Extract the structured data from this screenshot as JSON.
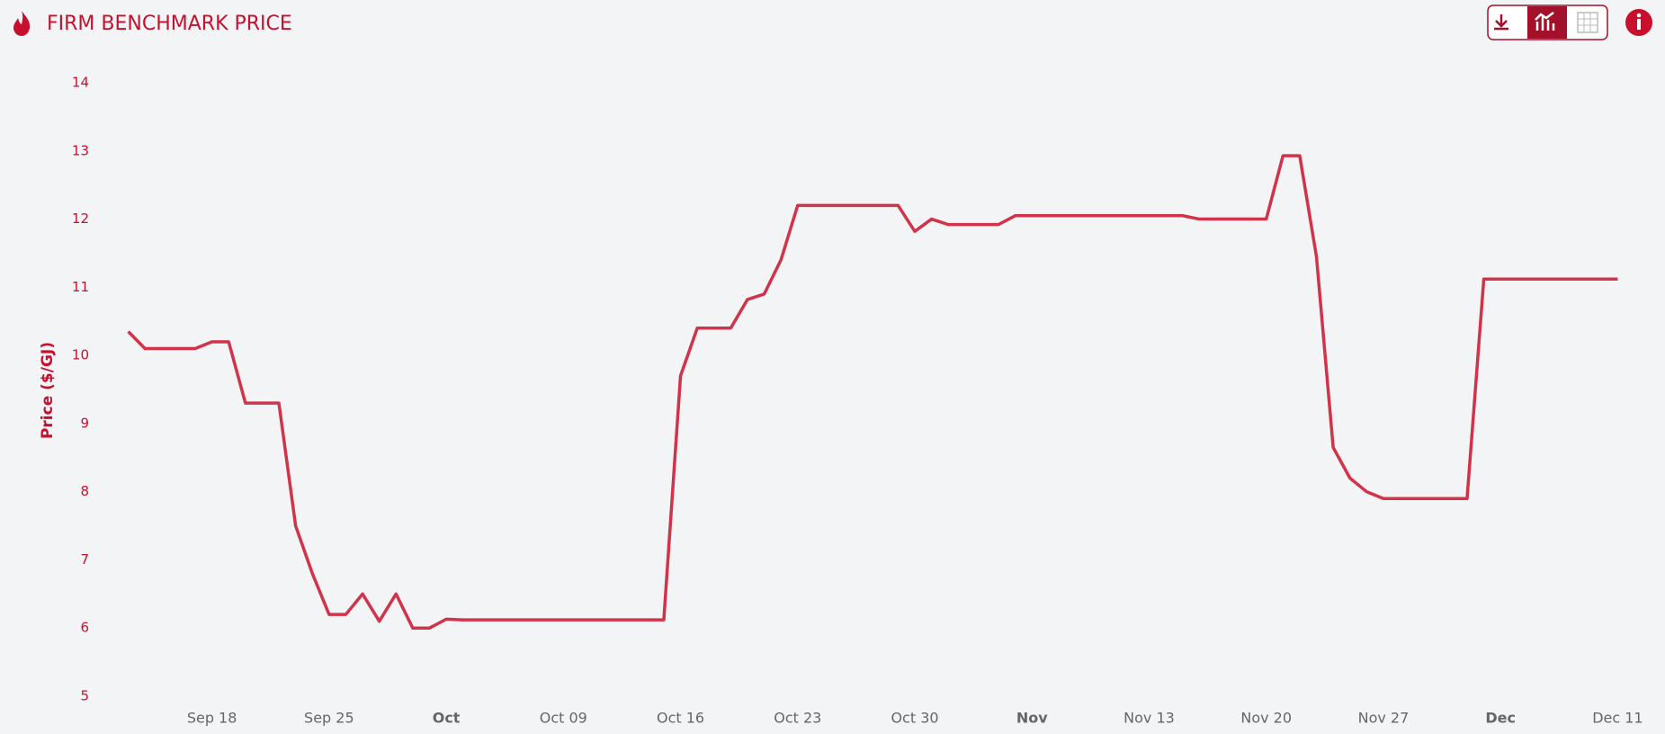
{
  "chart_data": {
    "type": "line",
    "title": "FIRM BENCHMARK PRICE",
    "ylabel": "Price ($/GJ)",
    "color": "#d0334a",
    "grid": false,
    "ylim": [
      5,
      14
    ],
    "yticks": [
      5,
      6,
      7,
      8,
      9,
      10,
      11,
      12,
      13,
      14
    ],
    "xlim": [
      "Sep 12",
      "Dec 12"
    ],
    "xticks": [
      "Sep 18",
      "Sep 25",
      {
        "value": "Oct 02",
        "label": "Oct"
      },
      "Oct 09",
      "Oct 16",
      "Oct 23",
      "Oct 30",
      {
        "value": "Nov 06",
        "label": "Nov"
      },
      "Nov 13",
      "Nov 20",
      "Nov 27",
      {
        "value": "Dec 04",
        "label": "Dec"
      },
      "Dec 11"
    ],
    "x": [
      "Sep 13",
      "Sep 14",
      "Sep 15",
      "Sep 16",
      "Sep 17",
      "Sep 18",
      "Sep 19",
      "Sep 20",
      "Sep 21",
      "Sep 22",
      "Sep 23",
      "Sep 24",
      "Sep 25",
      "Sep 26",
      "Sep 27",
      "Sep 28",
      "Sep 29",
      "Sep 30",
      "Oct 01",
      "Oct 02",
      "Oct 03",
      "Oct 04",
      "Oct 05",
      "Oct 06",
      "Oct 07",
      "Oct 08",
      "Oct 09",
      "Oct 10",
      "Oct 11",
      "Oct 12",
      "Oct 13",
      "Oct 14",
      "Oct 15",
      "Oct 16",
      "Oct 17",
      "Oct 18",
      "Oct 19",
      "Oct 20",
      "Oct 21",
      "Oct 22",
      "Oct 23",
      "Oct 24",
      "Oct 25",
      "Oct 26",
      "Oct 27",
      "Oct 28",
      "Oct 29",
      "Oct 30",
      "Oct 31",
      "Nov 01",
      "Nov 02",
      "Nov 03",
      "Nov 04",
      "Nov 05",
      "Nov 06",
      "Nov 07",
      "Nov 08",
      "Nov 09",
      "Nov 10",
      "Nov 11",
      "Nov 12",
      "Nov 13",
      "Nov 14",
      "Nov 15",
      "Nov 16",
      "Nov 17",
      "Nov 18",
      "Nov 19",
      "Nov 20",
      "Nov 21",
      "Nov 22",
      "Nov 23",
      "Nov 24",
      "Nov 25",
      "Nov 26",
      "Nov 27",
      "Nov 28",
      "Nov 29",
      "Nov 30",
      "Dec 01",
      "Dec 02",
      "Dec 03",
      "Dec 04",
      "Dec 05",
      "Dec 06",
      "Dec 07",
      "Dec 08",
      "Dec 09",
      "Dec 10",
      "Dec 11"
    ],
    "values": [
      10.35,
      10.1,
      10.1,
      10.1,
      10.1,
      10.2,
      10.2,
      9.3,
      9.3,
      9.3,
      7.5,
      6.8,
      6.2,
      6.2,
      6.5,
      6.1,
      6.5,
      6.0,
      6.0,
      6.13,
      6.12,
      6.12,
      6.12,
      6.12,
      6.12,
      6.12,
      6.12,
      6.12,
      6.12,
      6.12,
      6.12,
      6.12,
      6.12,
      9.7,
      10.4,
      10.4,
      10.4,
      10.82,
      10.9,
      11.4,
      12.2,
      12.2,
      12.2,
      12.2,
      12.2,
      12.2,
      12.2,
      11.82,
      12.0,
      11.92,
      11.92,
      11.92,
      11.92,
      12.05,
      12.05,
      12.05,
      12.05,
      12.05,
      12.05,
      12.05,
      12.05,
      12.05,
      12.05,
      12.05,
      12.0,
      12.0,
      12.0,
      12.0,
      12.0,
      12.93,
      12.93,
      11.45,
      8.65,
      8.2,
      8.0,
      7.9,
      7.9,
      7.9,
      7.9,
      7.9,
      7.9,
      11.12,
      11.12,
      11.12,
      11.12,
      11.12,
      11.12,
      11.12,
      11.12,
      11.12
    ]
  }
}
